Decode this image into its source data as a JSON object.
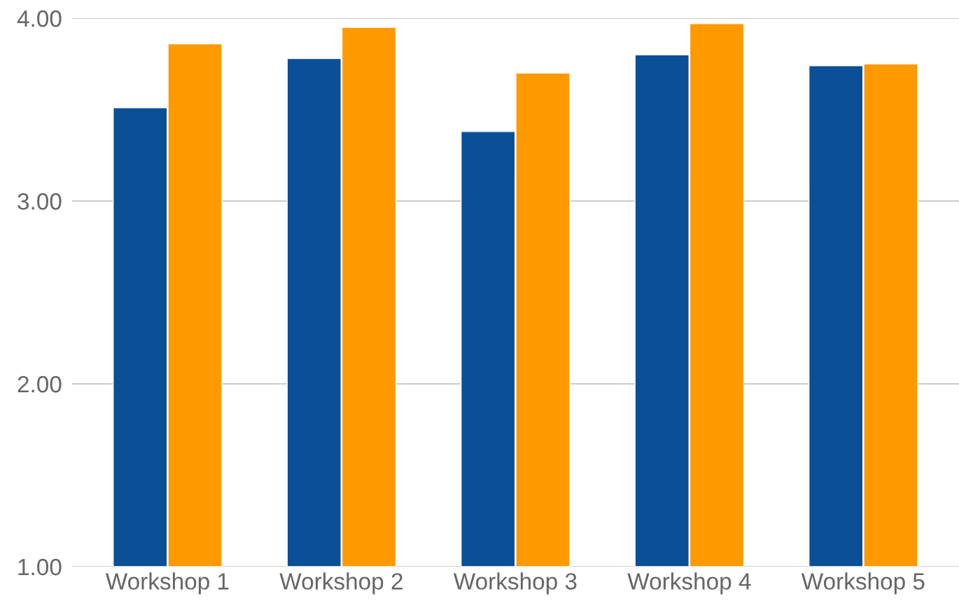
{
  "chart_data": {
    "type": "bar",
    "categories": [
      "Workshop 1",
      "Workshop 2",
      "Workshop 3",
      "Workshop 4",
      "Workshop 5"
    ],
    "series": [
      {
        "color": "#0b4f96",
        "values": [
          3.51,
          3.78,
          3.38,
          3.8,
          3.74
        ]
      },
      {
        "color": "#ff9900",
        "values": [
          3.86,
          3.95,
          3.7,
          3.97,
          3.75
        ]
      }
    ],
    "ylim": [
      1,
      4
    ],
    "yticks": [
      {
        "value": 1,
        "label": "1.00"
      },
      {
        "value": 2,
        "label": "2.00"
      },
      {
        "value": 3,
        "label": "3.00"
      },
      {
        "value": 4,
        "label": "4.00"
      }
    ],
    "grid": "y"
  }
}
